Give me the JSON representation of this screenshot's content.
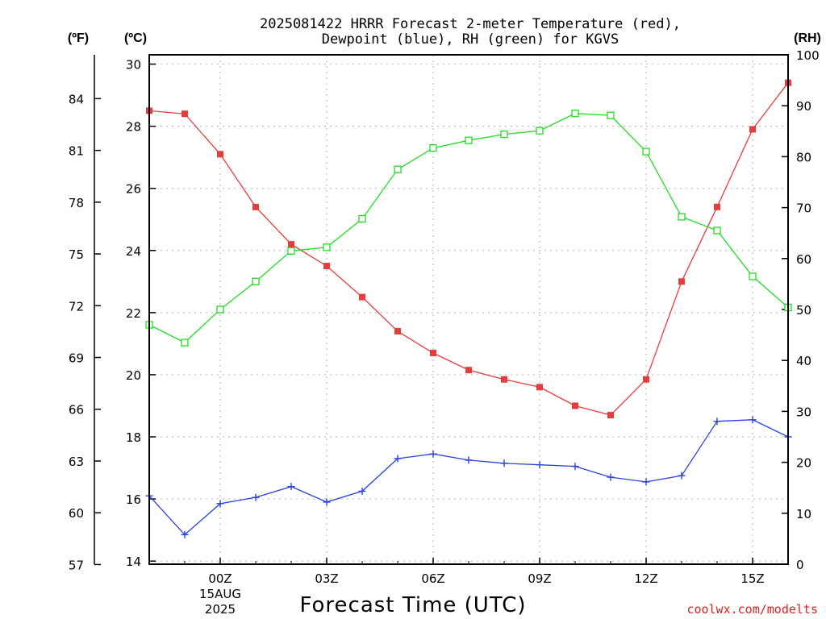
{
  "chart_data": {
    "type": "line",
    "title": [
      "2025081422 HRRR Forecast 2-meter Temperature (red),",
      "Dewpoint (blue), RH (green) for KGVS"
    ],
    "xlabel": "Forecast Time (UTC)",
    "left_outer_unit": "(ºF)",
    "left_inner_unit": "(ºC)",
    "right_unit": "(RH)",
    "credit": "coolwx.com/modelts",
    "x_hours_utc": [
      -2,
      -1,
      0,
      1,
      2,
      3,
      4,
      5,
      6,
      7,
      8,
      9,
      10,
      11,
      12,
      13,
      14,
      15,
      16
    ],
    "x_ticks": [
      {
        "hour": 0,
        "label": "00Z",
        "date_line1": "15AUG",
        "date_line2": "2025"
      },
      {
        "hour": 3,
        "label": "03Z"
      },
      {
        "hour": 6,
        "label": "06Z"
      },
      {
        "hour": 9,
        "label": "09Z"
      },
      {
        "hour": 12,
        "label": "12Z"
      },
      {
        "hour": 15,
        "label": "15Z"
      }
    ],
    "xlim": [
      -2,
      16
    ],
    "celsius_ylim": [
      13.9,
      30.3
    ],
    "celsius_ticks": [
      14,
      16,
      18,
      20,
      22,
      24,
      26,
      28,
      30
    ],
    "fahrenheit_ticks": [
      57,
      60,
      63,
      66,
      69,
      72,
      75,
      78,
      81,
      84
    ],
    "rh_ylim": [
      0,
      100
    ],
    "rh_ticks": [
      0,
      10,
      20,
      30,
      40,
      50,
      60,
      70,
      80,
      90,
      100
    ],
    "grid": true,
    "series": [
      {
        "name": "Temperature",
        "color": "#e83c3c",
        "marker": "filled-square",
        "axis": "celsius",
        "values": [
          28.5,
          28.4,
          27.1,
          25.4,
          24.2,
          23.5,
          22.5,
          21.4,
          20.7,
          20.15,
          19.85,
          19.6,
          19.0,
          18.7,
          19.85,
          23.0,
          25.4,
          27.9,
          29.4
        ]
      },
      {
        "name": "Dewpoint",
        "color": "#2840e0",
        "marker": "plus",
        "axis": "celsius",
        "values": [
          16.1,
          14.85,
          15.85,
          16.05,
          16.4,
          15.9,
          16.25,
          17.3,
          17.45,
          17.25,
          17.15,
          17.1,
          17.05,
          16.7,
          16.55,
          16.75,
          18.5,
          18.55,
          18.0
        ]
      },
      {
        "name": "RH",
        "color": "#22dd22",
        "marker": "open-square",
        "axis": "rh",
        "values": [
          47,
          43.5,
          50,
          55.5,
          61.5,
          62.2,
          67.8,
          77.5,
          81.7,
          83.2,
          84.4,
          85.1,
          88.5,
          88.1,
          81,
          68.2,
          65.5,
          56.5,
          50.4
        ]
      }
    ]
  }
}
